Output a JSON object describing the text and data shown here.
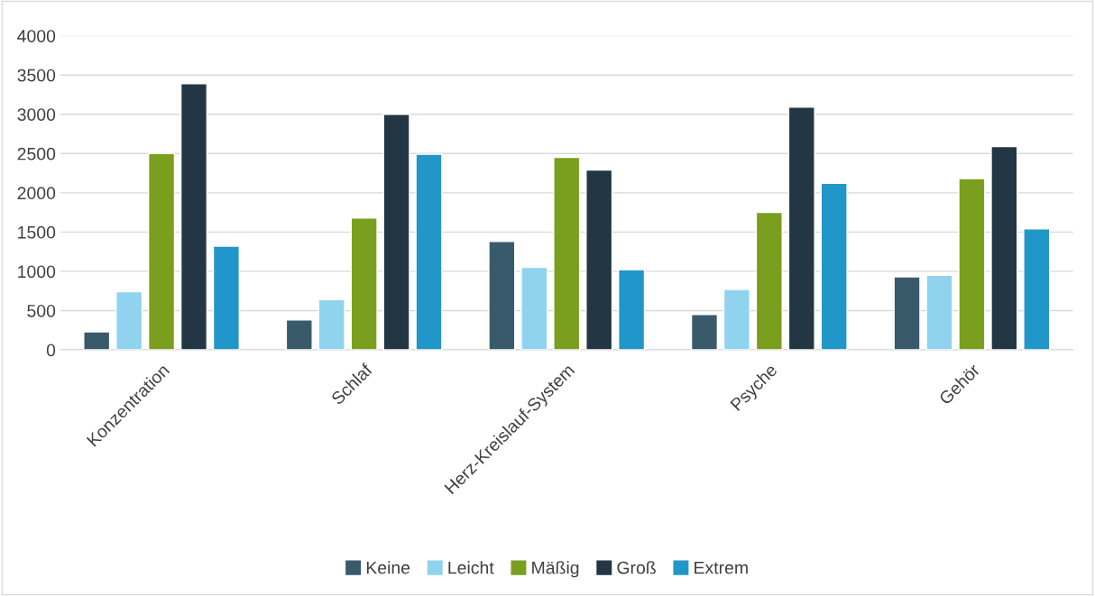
{
  "chart_data": {
    "type": "bar",
    "categories": [
      "Konzentration",
      "Schlaf",
      "Herz-Kreislauf-System",
      "Psyche",
      "Gehör"
    ],
    "series": [
      {
        "name": "Keine",
        "color": "#395a6b",
        "values": [
          230,
          380,
          1380,
          450,
          930
        ]
      },
      {
        "name": "Leicht",
        "color": "#8fd3ef",
        "values": [
          740,
          640,
          1050,
          770,
          950
        ]
      },
      {
        "name": "Mäßig",
        "color": "#7a9e1d",
        "values": [
          2500,
          1680,
          2450,
          1750,
          2180
        ]
      },
      {
        "name": "Groß",
        "color": "#233643",
        "values": [
          3390,
          3000,
          2290,
          3090,
          2590
        ]
      },
      {
        "name": "Extrem",
        "color": "#2196c8",
        "values": [
          1320,
          2490,
          1020,
          2120,
          1540
        ]
      }
    ],
    "ylim": [
      0,
      4000
    ],
    "yticks": [
      0,
      500,
      1000,
      1500,
      2000,
      2500,
      3000,
      3500,
      4000
    ],
    "grid": "y",
    "legend": "bottom"
  }
}
